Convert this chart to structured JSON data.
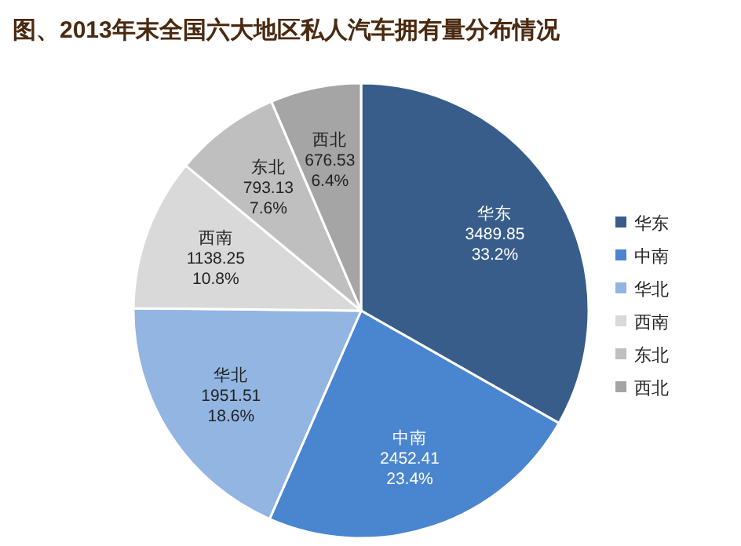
{
  "chart_data": {
    "type": "pie",
    "title": "图、2013年末全国六大地区私人汽车拥有量分布情况",
    "categories": [
      "华东",
      "中南",
      "华北",
      "西南",
      "东北",
      "西北"
    ],
    "values": [
      3489.85,
      2452.41,
      1951.51,
      1138.25,
      793.13,
      676.53
    ],
    "value_labels": [
      "3489.85\n33.2%",
      "2452.41\n23.4%",
      "1951.51\n18.6%",
      "1138.25\n10.8%",
      "793.13\n7.6%",
      "676.53\n6.4%"
    ],
    "colors": [
      "#385d8a",
      "#4a85cf",
      "#92b5e2",
      "#d9d9d9",
      "#bfbfbf",
      "#a5a5a5"
    ],
    "legend": "right"
  }
}
